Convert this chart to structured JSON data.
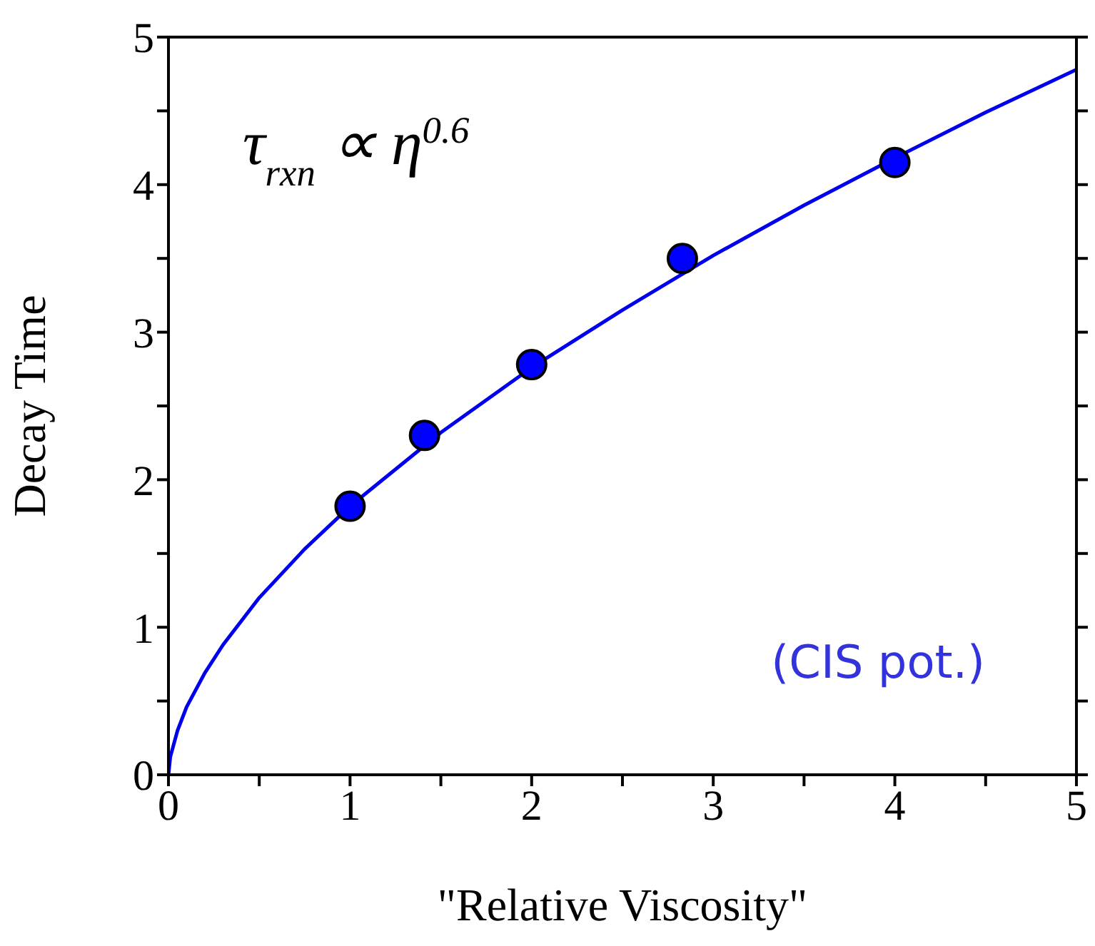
{
  "chart_data": {
    "type": "scatter",
    "xlabel": "\"Relative Viscosity\"",
    "ylabel": "Decay Time",
    "annotations": [
      "τ$_{rxn}$ ∝ η$^{0.6}$",
      "(CIS pot.)"
    ],
    "series": [
      {
        "type": "line",
        "color": "#0000ee",
        "x": [
          0,
          0.01,
          0.05,
          0.1,
          0.2,
          0.3,
          0.5,
          0.75,
          1,
          1.5,
          2,
          2.5,
          3,
          3.5,
          4,
          4.5,
          5
        ],
        "values": [
          0,
          0.12,
          0.3,
          0.46,
          0.69,
          0.88,
          1.2,
          1.53,
          1.82,
          2.32,
          2.76,
          3.15,
          3.52,
          3.86,
          4.18,
          4.49,
          4.78
        ]
      },
      {
        "marker": "circle",
        "color": "#0000ff",
        "x": [
          1,
          1.41,
          2,
          2.83,
          4
        ],
        "values": [
          1.82,
          2.3,
          2.78,
          3.5,
          4.15
        ]
      }
    ],
    "xlim": [
      0,
      5
    ],
    "ylim": [
      0,
      5
    ],
    "xticks": [
      0,
      {
        "value": 0.5,
        "label": null
      },
      1,
      {
        "value": 1.5,
        "label": null
      },
      2,
      {
        "value": 2.5,
        "label": null
      },
      3,
      {
        "value": 3.5,
        "label": null
      },
      4,
      {
        "value": 4.5,
        "label": null
      },
      5
    ],
    "yticks": [
      0,
      {
        "value": 0.5,
        "label": null
      },
      1,
      {
        "value": 1.5,
        "label": null
      },
      2,
      {
        "value": 2.5,
        "label": null
      },
      3,
      {
        "value": 3.5,
        "label": null
      },
      4,
      {
        "value": 4.5,
        "label": null
      },
      5
    ]
  }
}
